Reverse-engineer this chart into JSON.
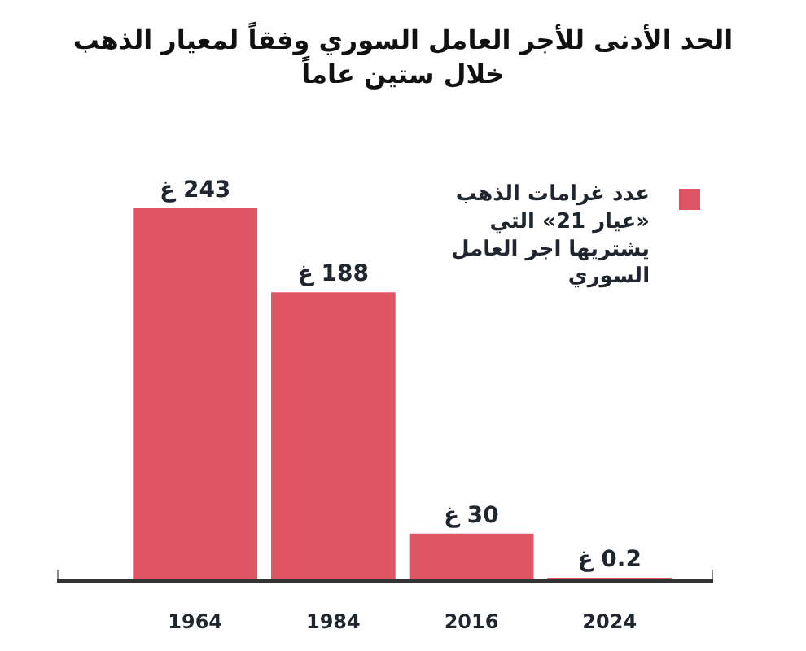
{
  "chart_data": {
    "type": "bar",
    "title": "الحد الأدنى للأجر العامل السوري وفقاً لمعيار الذهب\nخلال ستين عاماً",
    "categories": [
      "1964",
      "1984",
      "2016",
      "2024"
    ],
    "series": [
      {
        "name": "عدد غرامات الذهب\n«عيار 21» التي\nيشتريها اجر العامل\nالسوري",
        "color": "#e05563",
        "values": [
          243,
          188,
          30,
          0.2
        ],
        "value_labels": [
          "243 غ",
          "188 غ",
          "30 غ",
          "0.2 غ"
        ]
      }
    ],
    "legend": "top right"
  }
}
